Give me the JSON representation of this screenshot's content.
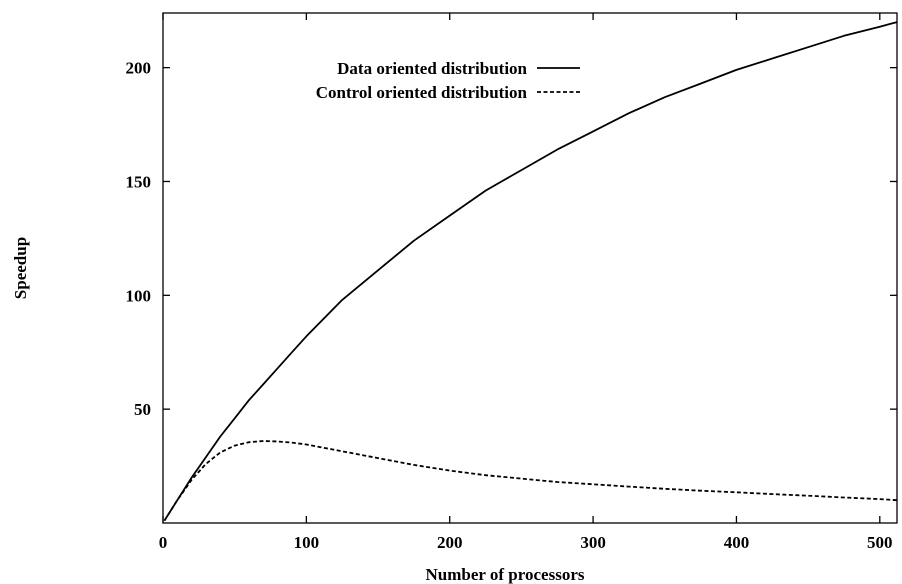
{
  "chart_data": {
    "type": "line",
    "title": "",
    "xlabel": "Number of processors",
    "ylabel": "Speedup",
    "xlim": [
      0,
      512
    ],
    "ylim": [
      0,
      224
    ],
    "xticks": [
      0,
      100,
      200,
      300,
      400,
      500
    ],
    "yticks": [
      50,
      100,
      150,
      200
    ],
    "grid": false,
    "legend_position": "top-center",
    "series": [
      {
        "name": "Data oriented distribution",
        "style": "solid",
        "color": "#000000",
        "points": [
          [
            1,
            1
          ],
          [
            10,
            10
          ],
          [
            20,
            20
          ],
          [
            30,
            29
          ],
          [
            40,
            38
          ],
          [
            50,
            46
          ],
          [
            60,
            54
          ],
          [
            70,
            61
          ],
          [
            80,
            68
          ],
          [
            90,
            75
          ],
          [
            100,
            82
          ],
          [
            125,
            98
          ],
          [
            150,
            111
          ],
          [
            175,
            124
          ],
          [
            200,
            135
          ],
          [
            225,
            146
          ],
          [
            250,
            155
          ],
          [
            275,
            164
          ],
          [
            300,
            172
          ],
          [
            325,
            180
          ],
          [
            350,
            187
          ],
          [
            375,
            193
          ],
          [
            400,
            199
          ],
          [
            425,
            204
          ],
          [
            450,
            209
          ],
          [
            475,
            214
          ],
          [
            500,
            218
          ],
          [
            512,
            220
          ]
        ]
      },
      {
        "name": "Control oriented distribution",
        "style": "dashed",
        "color": "#000000",
        "points": [
          [
            1,
            1
          ],
          [
            10,
            10
          ],
          [
            20,
            19
          ],
          [
            30,
            26
          ],
          [
            40,
            31
          ],
          [
            50,
            34
          ],
          [
            60,
            35.5
          ],
          [
            70,
            36
          ],
          [
            80,
            35.8
          ],
          [
            90,
            35.3
          ],
          [
            100,
            34.5
          ],
          [
            125,
            31.5
          ],
          [
            150,
            28.5
          ],
          [
            175,
            25.5
          ],
          [
            200,
            23
          ],
          [
            225,
            21
          ],
          [
            250,
            19.5
          ],
          [
            275,
            18
          ],
          [
            300,
            17
          ],
          [
            325,
            16
          ],
          [
            350,
            15
          ],
          [
            375,
            14.2
          ],
          [
            400,
            13.5
          ],
          [
            425,
            12.7
          ],
          [
            450,
            12
          ],
          [
            475,
            11.2
          ],
          [
            500,
            10.5
          ],
          [
            512,
            10
          ]
        ]
      }
    ]
  }
}
